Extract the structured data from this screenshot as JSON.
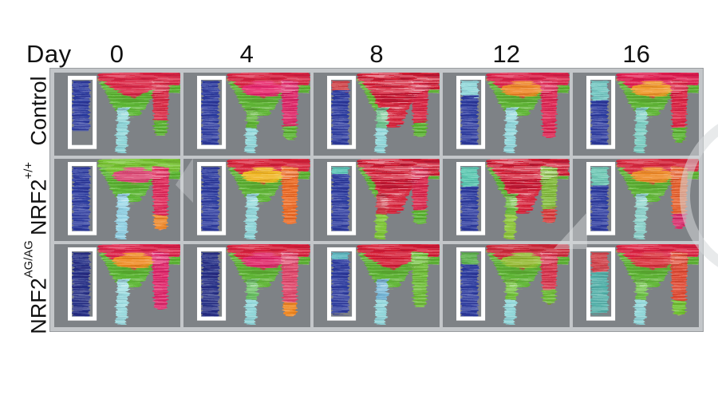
{
  "figure": {
    "type": "laser-doppler-perfusion-image-grid",
    "header": {
      "day_label": "Day",
      "days": [
        "0",
        "4",
        "8",
        "12",
        "16"
      ]
    },
    "palette": {
      "frame": "#c3c6c9",
      "cell_bg": "#7e8286",
      "roi_border": "#ffffff",
      "text": "#111111"
    },
    "rows": [
      {
        "key": "control",
        "label_main": "Control",
        "label_sup": "",
        "cells": [
          {
            "day": "0",
            "top": "#da2342",
            "big": false,
            "patch": null,
            "body": "#58b52e",
            "leg1": "#8fd8da",
            "leg1_tip": null,
            "leg2": "#d92742",
            "leg2_tip": "#58b52e",
            "leg2_len": 76,
            "roi": "#2b3a9e",
            "roi_top": null,
            "roi_top_len": 0,
            "roi_len": 64
          },
          {
            "day": "4",
            "top": "#d82040",
            "big": false,
            "patch": "#e8256e",
            "body": "#5ab32f",
            "leg1": "#5ab32f",
            "leg1_tip": "#8fd8da",
            "leg2": "#de2465",
            "leg2_tip": "#58b52e",
            "leg2_len": 82,
            "roi": "#2b3a9e",
            "roi_top": null,
            "roi_top_len": 0,
            "roi_len": 80
          },
          {
            "day": "8",
            "top": "#d41b33",
            "big": true,
            "patch": null,
            "body": "#5eb832",
            "leg1": "#6cc48c",
            "leg1_tip": "#8fd8da",
            "leg2": "#d8203e",
            "leg2_tip": "#58b52e",
            "leg2_len": 78,
            "roi": "#2b3a9e",
            "roi_top": "#cf4046",
            "roi_top_len": 14,
            "roi_len": 80
          },
          {
            "day": "12",
            "top": "#dc2148",
            "big": false,
            "patch": "#ef8d1e",
            "body": "#5ab32f",
            "leg1": "#90d8dc",
            "leg1_tip": null,
            "leg2": "#de2350",
            "leg2_tip": null,
            "leg2_len": 80,
            "roi": "#2b3a9e",
            "roi_top": "#8fd8da",
            "roi_top_len": 20,
            "roi_len": 80
          },
          {
            "day": "16",
            "top": "#e01a4e",
            "big": false,
            "patch": "#f0a020",
            "body": "#5ab32f",
            "leg1": "#7cd0c4",
            "leg1_tip": null,
            "leg2": "#dc2040",
            "leg2_tip": "#58b52e",
            "leg2_len": 84,
            "roi": "#2b3a9e",
            "roi_top": "#72c8c2",
            "roi_top_len": 28,
            "roi_len": 80
          }
        ]
      },
      {
        "key": "nrf2-wt",
        "label_main": "NRF2",
        "label_sup": "+/+",
        "cells": [
          {
            "day": "0",
            "top": "#74c42e",
            "big": false,
            "patch": "#e43a78",
            "body": "#58b52e",
            "leg1": "#92d4e6",
            "leg1_tip": null,
            "leg2": "#e02858",
            "leg2_tip": "#f08828",
            "leg2_len": 86,
            "roi": "#2b3a9e",
            "roi_top": null,
            "roi_top_len": 0,
            "roi_len": 80
          },
          {
            "day": "4",
            "top": "#d82038",
            "big": false,
            "patch": "#f2c11b",
            "body": "#5ab32f",
            "leg1": "#8fd8da",
            "leg1_tip": null,
            "leg2": "#ee6a20",
            "leg2_tip": null,
            "leg2_len": 80,
            "roi": "#2b3a9e",
            "roi_top": null,
            "roi_top_len": 0,
            "roi_len": 80
          },
          {
            "day": "8",
            "top": "#d41b33",
            "big": true,
            "patch": null,
            "body": "#5ab32f",
            "leg1": "#cc3340",
            "leg1_tip": "#7cc832",
            "leg2": "#da2448",
            "leg2_tip": "#58b52e",
            "leg2_len": 80,
            "roi": "#2b3a9e",
            "roi_top": "#56c4b4",
            "roi_top_len": 10,
            "roi_len": 80
          },
          {
            "day": "12",
            "top": "#d41b33",
            "big": true,
            "patch": null,
            "body": "#5ab32f",
            "leg1": "#6abc3a",
            "leg1_tip": "#8cc838",
            "leg2": "#80bc38",
            "leg2_tip": "#d83a3a",
            "leg2_len": 78,
            "roi": "#2b3a9e",
            "roi_top": "#58c8b0",
            "roi_top_len": 28,
            "roi_len": 80
          },
          {
            "day": "16",
            "top": "#d8283c",
            "big": false,
            "patch": "#f09020",
            "body": "#5ab32f",
            "leg1": "#8cd4cc",
            "leg1_tip": null,
            "leg2": "#e8602a",
            "leg2_tip": "#d82868",
            "leg2_len": 84,
            "roi": "#2b3a9e",
            "roi_top": "#6cc8b4",
            "roi_top_len": 24,
            "roi_len": 80
          }
        ]
      },
      {
        "key": "nrf2-agag",
        "label_main": "NRF2",
        "label_sup": "AG/AG",
        "cells": [
          {
            "day": "0",
            "top": "#dc2148",
            "big": false,
            "patch": "#f0931c",
            "body": "#58b52e",
            "leg1": "#9adce0",
            "leg1_tip": null,
            "leg2": "#e02468",
            "leg2_tip": null,
            "leg2_len": 80,
            "roi": "#242e85",
            "roi_top": null,
            "roi_top_len": 0,
            "roi_len": 80
          },
          {
            "day": "4",
            "top": "#d81f3a",
            "big": false,
            "patch": "#e0246a",
            "body": "#5ab32f",
            "leg1": "#66c060",
            "leg1_tip": "#8fd8da",
            "leg2": "#e04468",
            "leg2_tip": "#f0861c",
            "leg2_len": 88,
            "roi": "#242e85",
            "roi_top": null,
            "roi_top_len": 0,
            "roi_len": 82
          },
          {
            "day": "8",
            "top": "#d41b33",
            "big": false,
            "patch": null,
            "body": "#5ab32f",
            "leg1": "#74b8d8",
            "leg1_tip": "#90d8dc",
            "leg2": "#6cbe34",
            "leg2_tip": null,
            "leg2_len": 76,
            "roi": "#2b3a9e",
            "roi_top": "#58b8c0",
            "roi_top_len": 10,
            "roi_len": 78
          },
          {
            "day": "12",
            "top": "#cc2838",
            "big": false,
            "patch": "#8cc42c",
            "body": "#5ab32f",
            "leg1": "#70c238",
            "leg1_tip": "#8fd8da",
            "leg2": "#d83048",
            "leg2_tip": "#6cbe34",
            "leg2_len": 72,
            "roi": "#2b3a9e",
            "roi_top": "#58b048",
            "roi_top_len": 16,
            "roi_len": 80
          },
          {
            "day": "16",
            "top": "#dc2040",
            "big": false,
            "patch": "#d83038",
            "body": "#5ab32f",
            "leg1": "#6cc244",
            "leg1_tip": "#8fd8da",
            "leg2": "#e04830",
            "leg2_tip": "#6cc22c",
            "leg2_len": 86,
            "roi": "#50b0a8",
            "roi_top": "#d04048",
            "roi_top_len": 28,
            "roi_len": 78
          }
        ]
      }
    ]
  }
}
